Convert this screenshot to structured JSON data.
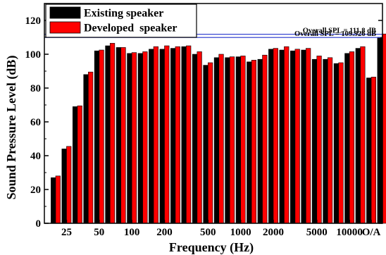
{
  "chart_data": {
    "type": "bar",
    "xlabel": "Frequency (Hz)",
    "ylabel": "Sound Pressure Level (dB)",
    "ylim": [
      0,
      130
    ],
    "yticks": [
      0,
      20,
      40,
      60,
      80,
      100,
      120
    ],
    "grid": false,
    "legend_position": "top-left",
    "x_tick_labels": [
      {
        "index": 1,
        "label": "25"
      },
      {
        "index": 4,
        "label": "50"
      },
      {
        "index": 7,
        "label": "100"
      },
      {
        "index": 10,
        "label": "200"
      },
      {
        "index": 14,
        "label": "500"
      },
      {
        "index": 17,
        "label": "1000"
      },
      {
        "index": 20,
        "label": "2000"
      },
      {
        "index": 24,
        "label": "5000"
      },
      {
        "index": 27,
        "label": "10000"
      },
      {
        "index": 29,
        "label": "O/A"
      }
    ],
    "series": [
      {
        "name": "Existing speaker",
        "color": "#000000",
        "values": [
          27,
          44,
          69,
          88,
          102,
          105,
          104,
          100.5,
          100.5,
          103,
          103,
          103.5,
          104.5,
          100,
          93.5,
          98,
          98,
          98.5,
          95.5,
          97,
          103,
          102.5,
          102,
          102.5,
          97,
          97,
          94.5,
          100.5,
          103.5,
          86,
          110
        ]
      },
      {
        "name": "Developed  speaker",
        "color": "#ff0000",
        "values": [
          28,
          45.5,
          69.5,
          89.5,
          102.5,
          106.5,
          104,
          101,
          101.5,
          104.5,
          105,
          104.5,
          105,
          101.5,
          95,
          100,
          98.5,
          99,
          96.5,
          99.5,
          103.5,
          104.5,
          103,
          103.5,
          99,
          98,
          95,
          101.5,
          104.5,
          86.5,
          112
        ]
      }
    ],
    "reference_lines": [
      {
        "value": 111.8,
        "label": "Overall SPL = 111.8 dB",
        "color": "#2233cc"
      },
      {
        "value": 109.926,
        "label": "Overall SPL = 109.926 dB",
        "color": "#2233cc"
      }
    ]
  }
}
